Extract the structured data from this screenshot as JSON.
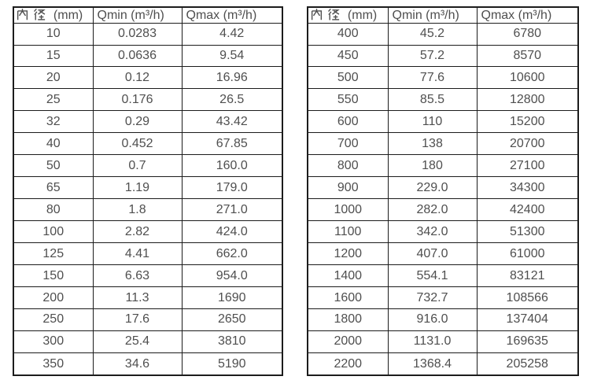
{
  "colors": {
    "background": "#ffffff",
    "border": "#1c1c1c",
    "text": "#4f4f4f"
  },
  "chart_data": [
    {
      "type": "table",
      "title": "",
      "columns": [
        "内径 (mm)",
        "Qmin (m³/h)",
        "Qmax (m³/h)"
      ],
      "header_diameter_cjk": "内径",
      "header_diameter_unit": "(mm)",
      "rows": [
        [
          "10",
          "0.0283",
          "4.42"
        ],
        [
          "15",
          "0.0636",
          "9.54"
        ],
        [
          "20",
          "0.12",
          "16.96"
        ],
        [
          "25",
          "0.176",
          "26.5"
        ],
        [
          "32",
          "0.29",
          "43.42"
        ],
        [
          "40",
          "0.452",
          "67.85"
        ],
        [
          "50",
          "0.7",
          "160.0"
        ],
        [
          "65",
          "1.19",
          "179.0"
        ],
        [
          "80",
          "1.8",
          "271.0"
        ],
        [
          "100",
          "2.82",
          "424.0"
        ],
        [
          "125",
          "4.41",
          "662.0"
        ],
        [
          "150",
          "6.63",
          "954.0"
        ],
        [
          "200",
          "11.3",
          "1690"
        ],
        [
          "250",
          "17.6",
          "2650"
        ],
        [
          "300",
          "25.4",
          "3810"
        ],
        [
          "350",
          "34.6",
          "5190"
        ]
      ]
    },
    {
      "type": "table",
      "title": "",
      "columns": [
        "内径 (mm)",
        "Qmin (m³/h)",
        "Qmax (m³/h)"
      ],
      "header_diameter_cjk": "内径",
      "header_diameter_unit": "(mm)",
      "rows": [
        [
          "400",
          "45.2",
          "6780"
        ],
        [
          "450",
          "57.2",
          "8570"
        ],
        [
          "500",
          "77.6",
          "10600"
        ],
        [
          "550",
          "85.5",
          "12800"
        ],
        [
          "600",
          "110",
          "15200"
        ],
        [
          "700",
          "138",
          "20700"
        ],
        [
          "800",
          "180",
          "27100"
        ],
        [
          "900",
          "229.0",
          "34300"
        ],
        [
          "1000",
          "282.0",
          "42400"
        ],
        [
          "1100",
          "342.0",
          "51300"
        ],
        [
          "1200",
          "407.0",
          "61000"
        ],
        [
          "1400",
          "554.1",
          "83121"
        ],
        [
          "1600",
          "732.7",
          "108566"
        ],
        [
          "1800",
          "916.0",
          "137404"
        ],
        [
          "2000",
          "1131.0",
          "169635"
        ],
        [
          "2200",
          "1368.4",
          "205258"
        ]
      ]
    }
  ]
}
